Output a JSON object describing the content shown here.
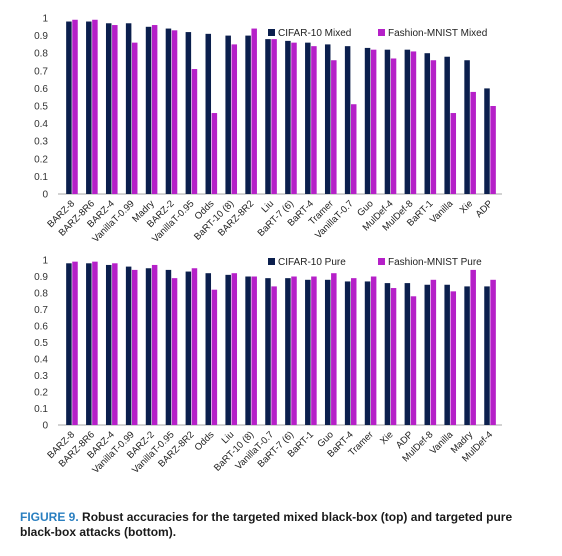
{
  "colors": {
    "cifar": "#0b1f4d",
    "fashion": "#b520c8",
    "axis": "#888888",
    "caption_label": "#2a7fc0"
  },
  "caption": {
    "label": "FIGURE 9.",
    "text": "Robust accuracies for the targeted mixed black-box (top) and targeted pure black-box attacks (bottom)."
  },
  "chart_data": [
    {
      "type": "bar",
      "ylim": [
        0,
        1
      ],
      "yticks": [
        "0",
        "0.1",
        "0.2",
        "0.3",
        "0.4",
        "0.5",
        "0.6",
        "0.7",
        "0.8",
        "0.9",
        "1"
      ],
      "legend_position": "top-right",
      "categories": [
        "BARZ-8",
        "BARZ-8R6",
        "BARZ-4",
        "VanillaT-0.99",
        "Madry",
        "BARZ-2",
        "VanillaT-0.95",
        "Odds",
        "BaRT-10 (8)",
        "BARZ-8R2",
        "Liu",
        "BaRT-7 (6)",
        "BaRT-4",
        "Tramer",
        "VanillaT-0.7",
        "Guo",
        "MulDef-4",
        "MulDef-8",
        "BaRT-1",
        "Vanilla",
        "Xie",
        "ADP"
      ],
      "series": [
        {
          "name": "CIFAR-10 Mixed",
          "values": [
            0.98,
            0.98,
            0.97,
            0.97,
            0.95,
            0.94,
            0.92,
            0.91,
            0.9,
            0.9,
            0.88,
            0.87,
            0.86,
            0.85,
            0.84,
            0.83,
            0.82,
            0.82,
            0.8,
            0.78,
            0.76,
            0.6
          ]
        },
        {
          "name": "Fashion-MNIST Mixed",
          "values": [
            0.99,
            0.99,
            0.96,
            0.86,
            0.96,
            0.93,
            0.71,
            0.46,
            0.85,
            0.94,
            0.88,
            0.86,
            0.84,
            0.76,
            0.51,
            0.82,
            0.77,
            0.81,
            0.76,
            0.46,
            0.58,
            0.5
          ]
        }
      ]
    },
    {
      "type": "bar",
      "ylim": [
        0,
        1
      ],
      "yticks": [
        "0",
        "0.1",
        "0.2",
        "0.3",
        "0.4",
        "0.5",
        "0.6",
        "0.7",
        "0.8",
        "0.9",
        "1"
      ],
      "legend_position": "top-right",
      "categories": [
        "BARZ-8",
        "BARZ-8R6",
        "BARZ-4",
        "VanillaT-0.99",
        "BARZ-2",
        "VanillaT-0.95",
        "BARZ-8R2",
        "Odds",
        "Liu",
        "BaRT-10 (8)",
        "VanillaT-0.7",
        "BaRT-7 (6)",
        "BaRT-1",
        "Guo",
        "BaRT-4",
        "Tramer",
        "Xie",
        "ADP",
        "MulDef-8",
        "Vanilla",
        "Madry",
        "MulDef-4"
      ],
      "series": [
        {
          "name": "CIFAR-10 Pure",
          "values": [
            0.98,
            0.98,
            0.97,
            0.96,
            0.95,
            0.94,
            0.93,
            0.92,
            0.91,
            0.9,
            0.89,
            0.89,
            0.88,
            0.88,
            0.87,
            0.87,
            0.86,
            0.86,
            0.85,
            0.85,
            0.84,
            0.84
          ]
        },
        {
          "name": "Fashion-MNIST Pure",
          "values": [
            0.99,
            0.99,
            0.98,
            0.94,
            0.97,
            0.89,
            0.95,
            0.82,
            0.92,
            0.9,
            0.84,
            0.9,
            0.9,
            0.92,
            0.89,
            0.9,
            0.83,
            0.78,
            0.88,
            0.81,
            0.94,
            0.88
          ]
        }
      ]
    }
  ]
}
